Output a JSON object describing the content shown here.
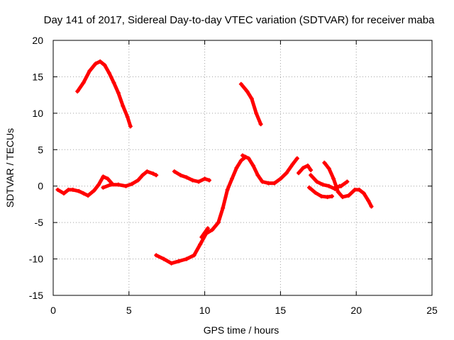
{
  "chart_data": {
    "type": "scatter",
    "title": "Day 141 of 2017, Sidereal Day-to-day VTEC variation (SDTVAR) for receiver maba",
    "xlabel": "GPS time / hours",
    "ylabel": "SDTVAR / TECUs",
    "xlim": [
      0,
      25
    ],
    "ylim": [
      -15,
      20
    ],
    "xticks": [
      0,
      5,
      10,
      15,
      20,
      25
    ],
    "yticks": [
      -15,
      -10,
      -5,
      0,
      5,
      10,
      15,
      20
    ],
    "grid": true,
    "color": "#ff0000",
    "series": [
      {
        "name": "arc1",
        "x": [
          1.6,
          2.0,
          2.4,
          2.8,
          3.1,
          3.4,
          3.7,
          4.0,
          4.3,
          4.6,
          4.9,
          5.1
        ],
        "y": [
          13,
          14.2,
          15.8,
          16.8,
          17.1,
          16.6,
          15.5,
          14.2,
          12.8,
          11,
          9.5,
          8.2
        ]
      },
      {
        "name": "arc2",
        "x": [
          0.3,
          0.7,
          1.0,
          1.3,
          1.7,
          2.0,
          2.3,
          2.7,
          3.0,
          3.3,
          3.6,
          3.9
        ],
        "y": [
          -0.5,
          -1.0,
          -0.5,
          -0.5,
          -0.7,
          -1.0,
          -1.3,
          -0.6,
          0.2,
          1.3,
          1.0,
          0.3
        ]
      },
      {
        "name": "arc3",
        "x": [
          3.3,
          3.8,
          4.3,
          4.8,
          5.2,
          5.6,
          5.9,
          6.2,
          6.6,
          6.8
        ],
        "y": [
          -0.2,
          0.2,
          0.2,
          0.0,
          0.3,
          0.8,
          1.5,
          2.0,
          1.7,
          1.5
        ]
      },
      {
        "name": "arc4",
        "x": [
          8.0,
          8.4,
          8.8,
          9.2,
          9.6,
          10.0,
          10.3
        ],
        "y": [
          2.0,
          1.5,
          1.2,
          0.8,
          0.6,
          1.0,
          0.8
        ]
      },
      {
        "name": "arc5",
        "x": [
          6.8,
          7.3,
          7.8,
          8.3,
          8.8,
          9.3,
          9.7,
          10.1,
          10.5,
          10.9,
          11.2,
          11.5,
          11.8,
          12.1,
          12.4,
          12.7
        ],
        "y": [
          -9.5,
          -10.0,
          -10.6,
          -10.3,
          -10.0,
          -9.5,
          -8.0,
          -6.5,
          -6.0,
          -5.0,
          -3.0,
          -0.5,
          1.0,
          2.5,
          3.5,
          4.0
        ]
      },
      {
        "name": "arc6",
        "x": [
          9.8,
          10.2
        ],
        "y": [
          -7.0,
          -5.8
        ]
      },
      {
        "name": "arc7",
        "x": [
          12.4,
          12.8,
          13.1,
          13.4,
          13.7
        ],
        "y": [
          14.0,
          13.0,
          12.0,
          10.0,
          8.5
        ]
      },
      {
        "name": "arc8",
        "x": [
          12.5,
          12.9,
          13.2,
          13.5,
          13.8,
          14.2,
          14.6,
          15.0,
          15.4,
          15.8,
          16.1
        ],
        "y": [
          4.2,
          3.8,
          2.8,
          1.5,
          0.6,
          0.4,
          0.4,
          1.0,
          1.8,
          3.0,
          3.8
        ]
      },
      {
        "name": "arc9",
        "x": [
          16.2,
          16.5,
          16.8,
          17.0
        ],
        "y": [
          1.8,
          2.5,
          2.8,
          2.2
        ]
      },
      {
        "name": "arc10",
        "x": [
          17.0,
          17.4,
          17.8,
          18.2,
          18.6,
          18.9
        ],
        "y": [
          1.5,
          0.6,
          0.2,
          0.0,
          -0.4,
          0.0
        ]
      },
      {
        "name": "arc11",
        "x": [
          16.9,
          17.3,
          17.7,
          18.1,
          18.4
        ],
        "y": [
          -0.2,
          -0.9,
          -1.4,
          -1.5,
          -1.4
        ]
      },
      {
        "name": "arc12",
        "x": [
          17.9,
          18.2,
          18.5,
          18.8,
          19.1,
          19.5,
          19.9,
          20.2,
          20.5,
          20.8,
          21.0
        ],
        "y": [
          3.2,
          2.4,
          1.0,
          -0.8,
          -1.5,
          -1.3,
          -0.5,
          -0.5,
          -1.0,
          -2.0,
          -2.8
        ]
      },
      {
        "name": "arc13",
        "x": [
          18.6,
          19.0,
          19.4
        ],
        "y": [
          -0.2,
          0.0,
          0.6
        ]
      }
    ]
  }
}
